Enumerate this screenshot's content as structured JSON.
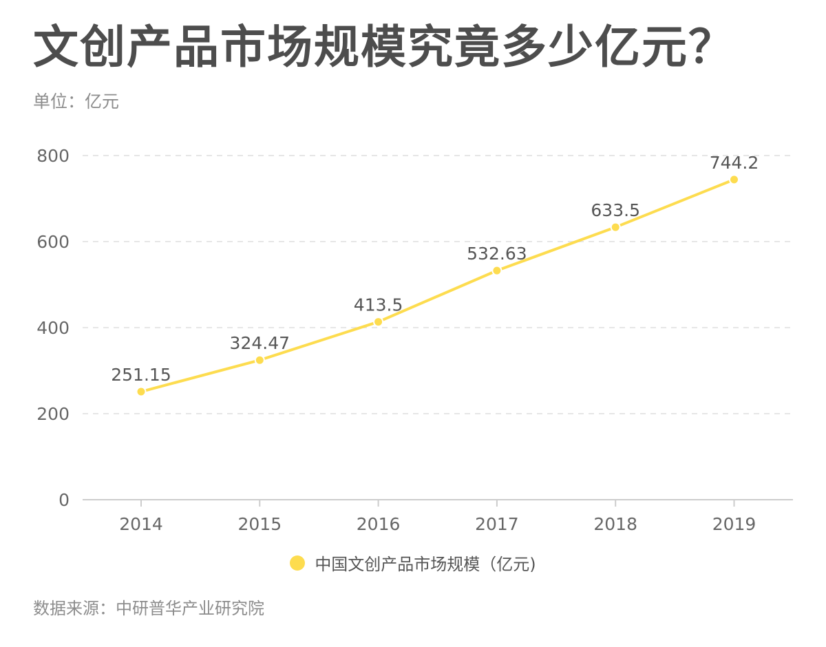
{
  "header": {
    "title": "文创产品市场规模究竟多少亿元？",
    "unit": "单位：亿元"
  },
  "footer": {
    "source": "数据来源：中研普华产业研究院"
  },
  "colors": {
    "line": "#fddc4f",
    "axis_text": "#666666",
    "grid": "#e6e6e6",
    "baseline": "#cccccc"
  },
  "chart_data": {
    "type": "line",
    "title": "文创产品市场规模究竟多少亿元？",
    "subtitle": "单位：亿元",
    "categories": [
      "2014",
      "2015",
      "2016",
      "2017",
      "2018",
      "2019"
    ],
    "series": [
      {
        "name": "中国文创产品市场规模（亿元)",
        "values": [
          251.15,
          324.47,
          413.5,
          532.63,
          633.5,
          744.2
        ],
        "labels": [
          "251.15",
          "324.47",
          "413.5",
          "532.63",
          "633.5",
          "744.2"
        ],
        "color": "#fddc4f"
      }
    ],
    "y_ticks": [
      "0",
      "200",
      "400",
      "600",
      "800"
    ],
    "ylim": [
      0,
      800
    ],
    "grid": true,
    "grid_style": "dashed",
    "legend": "bottom-center",
    "data_labels": true
  }
}
